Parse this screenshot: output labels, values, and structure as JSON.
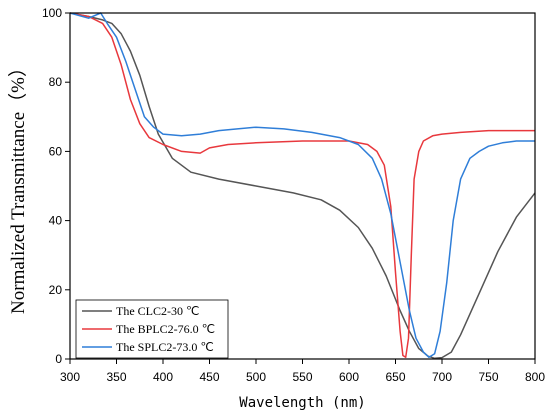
{
  "chart_data": {
    "type": "line",
    "xlabel": "Wavelength (nm)",
    "ylabel": "Normalized Transmittance（%）",
    "xlim": [
      300,
      800
    ],
    "ylim": [
      0,
      100
    ],
    "xticks": [
      300,
      350,
      400,
      450,
      500,
      550,
      600,
      650,
      700,
      750,
      800
    ],
    "yticks": [
      0,
      20,
      40,
      60,
      80,
      100
    ],
    "legend_position": "bottom-left",
    "grid": false,
    "series": [
      {
        "name": "The CLC2-30 ℃",
        "color": "#555555",
        "x": [
          300,
          320,
          335,
          345,
          355,
          365,
          375,
          385,
          395,
          410,
          430,
          460,
          500,
          540,
          570,
          590,
          610,
          625,
          640,
          655,
          665,
          675,
          685,
          692,
          700,
          710,
          720,
          740,
          760,
          780,
          800
        ],
        "y": [
          100,
          99,
          98,
          97,
          94,
          89,
          82,
          73,
          65,
          58,
          54,
          52,
          50,
          48,
          46,
          43,
          38,
          32,
          24,
          14,
          8,
          3,
          0.8,
          0.2,
          0.4,
          2,
          7,
          19,
          31,
          41,
          48
        ]
      },
      {
        "name": "The BPLC2-76.0 ℃",
        "color": "#e8383d",
        "x": [
          300,
          320,
          335,
          345,
          355,
          365,
          375,
          385,
          400,
          420,
          440,
          450,
          470,
          500,
          550,
          600,
          620,
          630,
          638,
          645,
          650,
          655,
          658,
          661,
          664,
          667,
          670,
          675,
          680,
          690,
          700,
          720,
          750,
          770,
          800
        ],
        "y": [
          100,
          99,
          97,
          93,
          85,
          75,
          68,
          64,
          62,
          60,
          59.5,
          61,
          62,
          62.5,
          63,
          63,
          62,
          60,
          56,
          44,
          25,
          8,
          1,
          0.5,
          6,
          30,
          52,
          60,
          63,
          64.5,
          65,
          65.5,
          66,
          66,
          66
        ]
      },
      {
        "name": "The SPLC2-73.0 ℃",
        "color": "#2f7ed8",
        "x": [
          300,
          320,
          333,
          340,
          350,
          360,
          370,
          380,
          390,
          400,
          420,
          440,
          460,
          480,
          500,
          530,
          560,
          590,
          610,
          625,
          635,
          645,
          655,
          665,
          672,
          680,
          686,
          692,
          698,
          705,
          712,
          720,
          730,
          740,
          750,
          765,
          780,
          800
        ],
        "y": [
          100,
          98.5,
          100,
          97,
          93,
          86,
          78,
          70,
          67,
          65,
          64.5,
          65,
          66,
          66.5,
          67,
          66.5,
          65.5,
          64,
          62,
          58,
          52,
          42,
          28,
          14,
          6,
          2,
          0.5,
          1.5,
          8,
          22,
          40,
          52,
          58,
          60,
          61.5,
          62.5,
          63,
          63
        ]
      }
    ]
  }
}
